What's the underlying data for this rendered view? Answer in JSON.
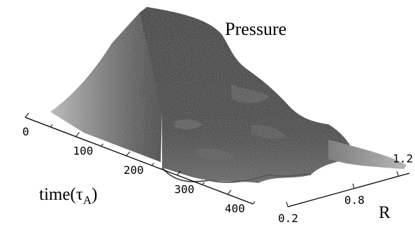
{
  "chart_data": {
    "type": "surface",
    "title": "Pressure",
    "xlabel_prefix": "time(",
    "xlabel_symbol": "τ",
    "xlabel_subscript": "A",
    "xlabel_suffix": ")",
    "ylabel": "R",
    "x_ticks": [
      "0",
      "100",
      "200",
      "300",
      "400"
    ],
    "y_ticks": [
      "0.2",
      "0.8",
      "1.2"
    ],
    "xlim": [
      0,
      450
    ],
    "ylim": [
      0.2,
      1.3
    ],
    "grid": false,
    "colors": {
      "surface_dark": "#1c1c1c",
      "surface_mid": "#555555",
      "surface_light": "#b4b4b4",
      "axis": "#000000"
    }
  }
}
